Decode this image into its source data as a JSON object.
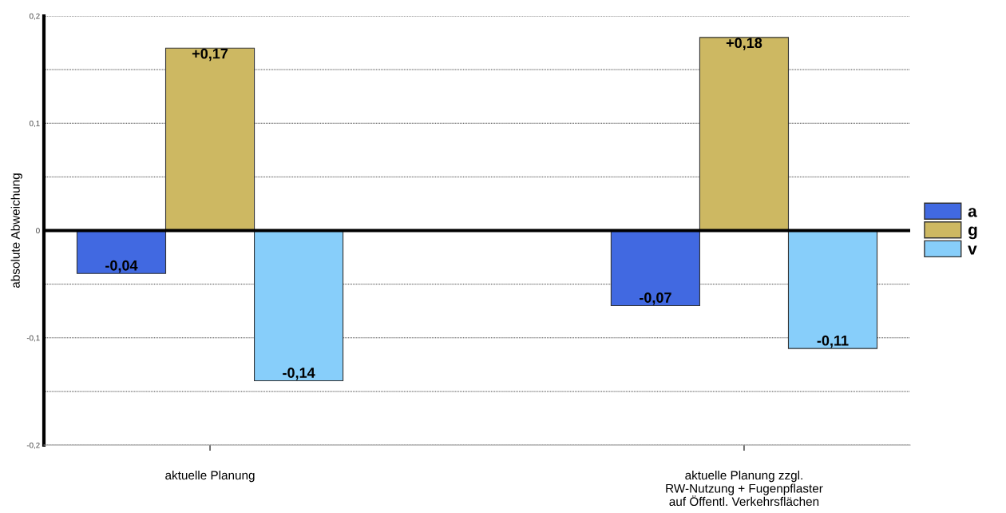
{
  "chart_data": {
    "type": "bar",
    "ylabel": "absolute Abweichung",
    "categories": [
      "aktuelle Planung",
      "aktuelle Planung zzgl.\nRW-Nutzung + Fugenpflaster\nauf Öffentl. Verkehrsflächen"
    ],
    "series": [
      {
        "name": "a",
        "color": "#4169e1",
        "values": [
          -0.04,
          -0.07
        ],
        "value_labels": [
          "-0,04",
          "-0,07"
        ]
      },
      {
        "name": "g",
        "color": "#cdb862",
        "values": [
          0.17,
          0.18
        ],
        "value_labels": [
          "+0,17",
          "+0,18"
        ]
      },
      {
        "name": "v",
        "color": "#87cefa",
        "values": [
          -0.14,
          -0.11
        ],
        "value_labels": [
          "-0,14",
          "-0,11"
        ]
      }
    ],
    "ylim": [
      -0.2,
      0.2
    ],
    "yticks": [
      {
        "value": -0.2,
        "label": "-0,2"
      },
      {
        "value": -0.15,
        "label": null
      },
      {
        "value": -0.1,
        "label": "-0,1"
      },
      {
        "value": -0.05,
        "label": null
      },
      0,
      {
        "value": 0.05,
        "label": null
      },
      {
        "value": 0.1,
        "label": "0,1"
      },
      {
        "value": 0.15,
        "label": null
      },
      {
        "value": 0.2,
        "label": "0,2"
      }
    ],
    "ref_lines": [
      {
        "axis": "y",
        "value": 0,
        "color": "#000000"
      }
    ],
    "grid": "y",
    "legend": "right"
  }
}
